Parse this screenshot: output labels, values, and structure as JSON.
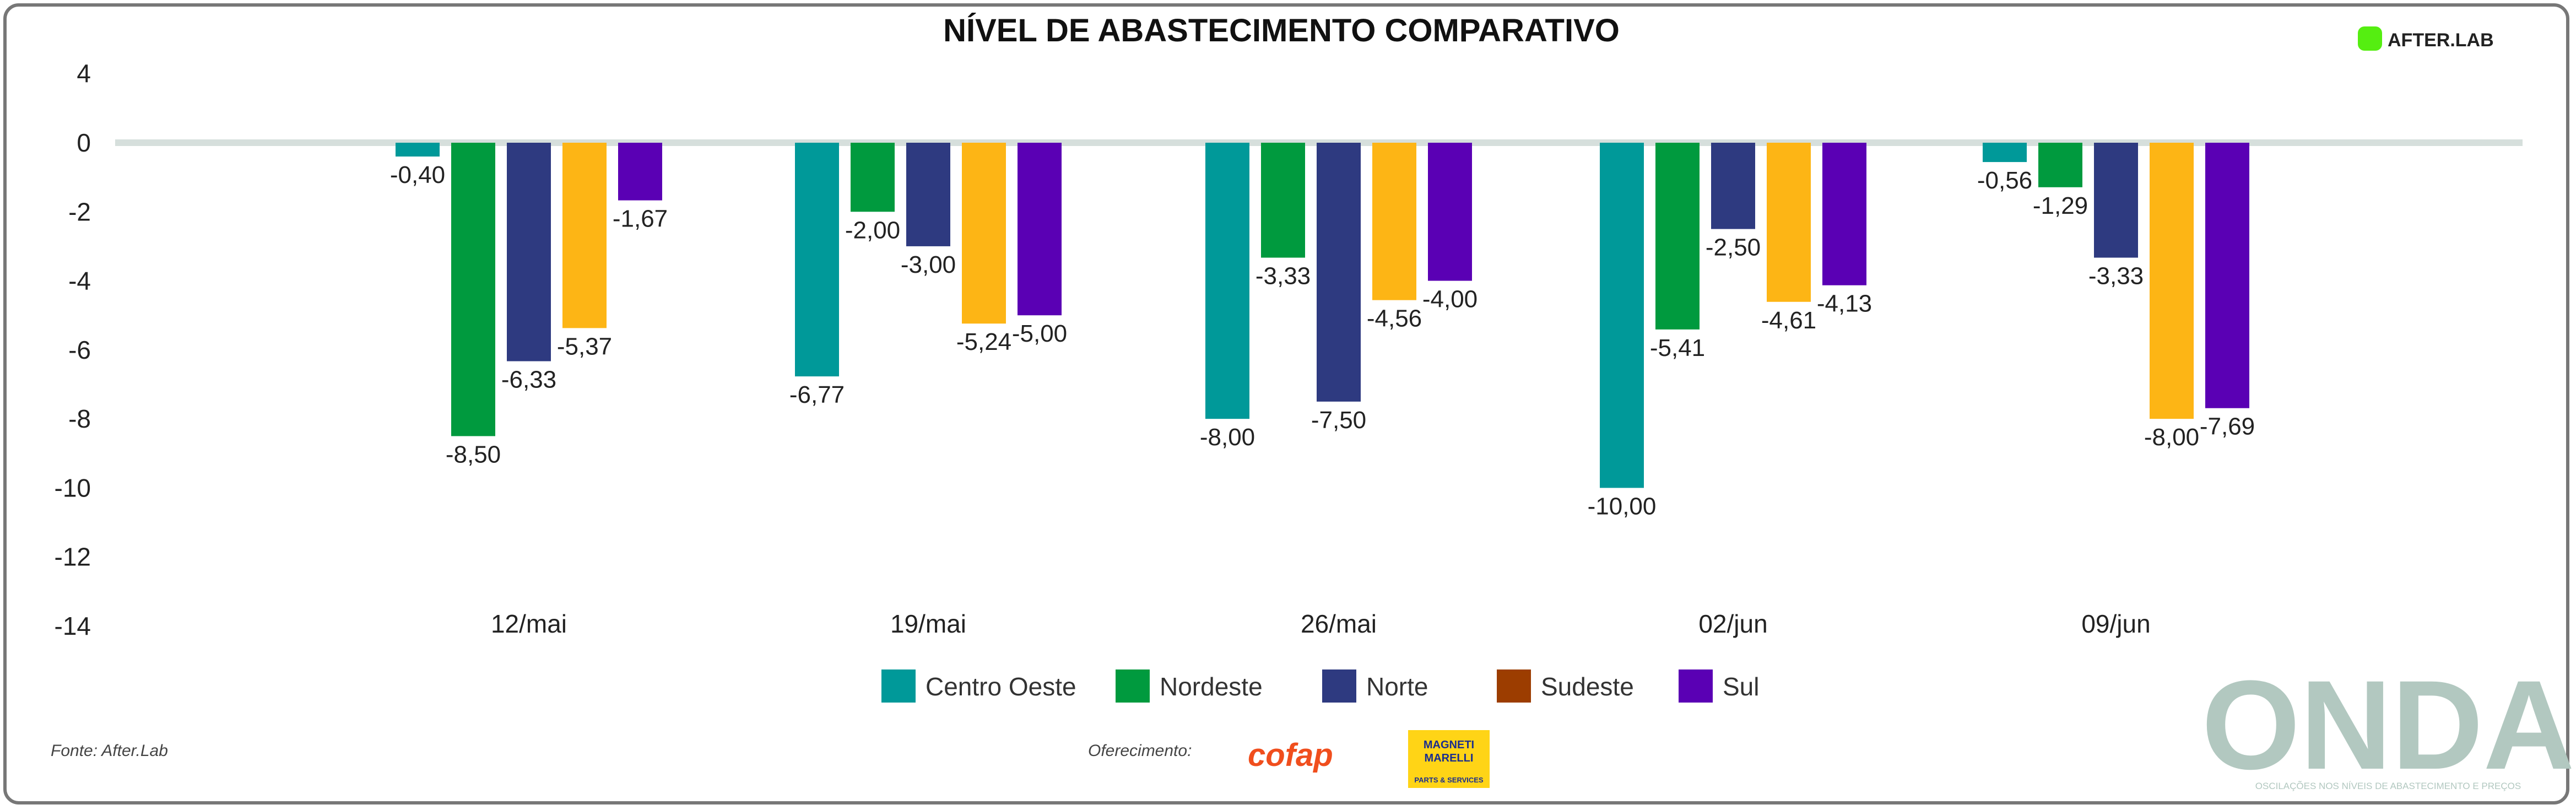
{
  "chart_data": {
    "type": "bar",
    "title": "NÍVEL DE ABASTECIMENTO COMPARATIVO",
    "categories": [
      "12/mai",
      "19/mai",
      "26/mai",
      "02/jun",
      "09/jun"
    ],
    "series": [
      {
        "name": "Centro Oeste",
        "color": "#009999",
        "values": [
          -0.4,
          -6.77,
          -8.0,
          -10.0,
          -0.56
        ],
        "labels": [
          "-0,40",
          "-6,77",
          "-8,00",
          "-10,00",
          "-0,56"
        ]
      },
      {
        "name": "Nordeste",
        "color": "#009a3e",
        "values": [
          -8.5,
          -2.0,
          -3.33,
          -5.41,
          -1.29
        ],
        "labels": [
          "-8,50",
          "-2,00",
          "-3,33",
          "-5,41",
          "-1,29"
        ]
      },
      {
        "name": "Norte",
        "color": "#2e3a80",
        "values": [
          -6.33,
          -3.0,
          -7.5,
          -2.5,
          -3.33
        ],
        "labels": [
          "-6,33",
          "-3,00",
          "-7,50",
          "-2,50",
          "-3,33"
        ]
      },
      {
        "name": "Sudeste",
        "color": "#fdb515",
        "legend_color": "#9c3d00",
        "values": [
          -5.37,
          -5.24,
          -4.56,
          -4.61,
          -8.0
        ],
        "labels": [
          "-5,37",
          "-5,24",
          "-4,56",
          "-4,61",
          "-8,00"
        ]
      },
      {
        "name": "Sul",
        "color": "#5a00b4",
        "values": [
          -1.67,
          -5.0,
          -4.0,
          -4.13,
          -7.69
        ],
        "labels": [
          "-1,67",
          "-5,00",
          "-4,00",
          "-4,13",
          "-7,69"
        ]
      }
    ],
    "ylim": [
      -14,
      4
    ],
    "yticks": [
      4,
      0,
      -2,
      -4,
      -6,
      -8,
      -10,
      -12,
      -14
    ],
    "legend_placement": "bottom-center",
    "grid": false
  },
  "footer": {
    "source": "Fonte: After.Lab",
    "sponsors_label": "Oferecimento:",
    "sponsor1": "cofap",
    "sponsor2_line1": "MAGNETI",
    "sponsor2_line2": "MARELLI",
    "sponsor2_sub": "PARTS & SERVICES",
    "brand": "ONDA",
    "brand_sub": "OSCILAÇÕES NOS NÍVEIS DE ABASTECIMENTO E PREÇOS"
  },
  "header": {
    "logo": "AFTER.LAB"
  }
}
